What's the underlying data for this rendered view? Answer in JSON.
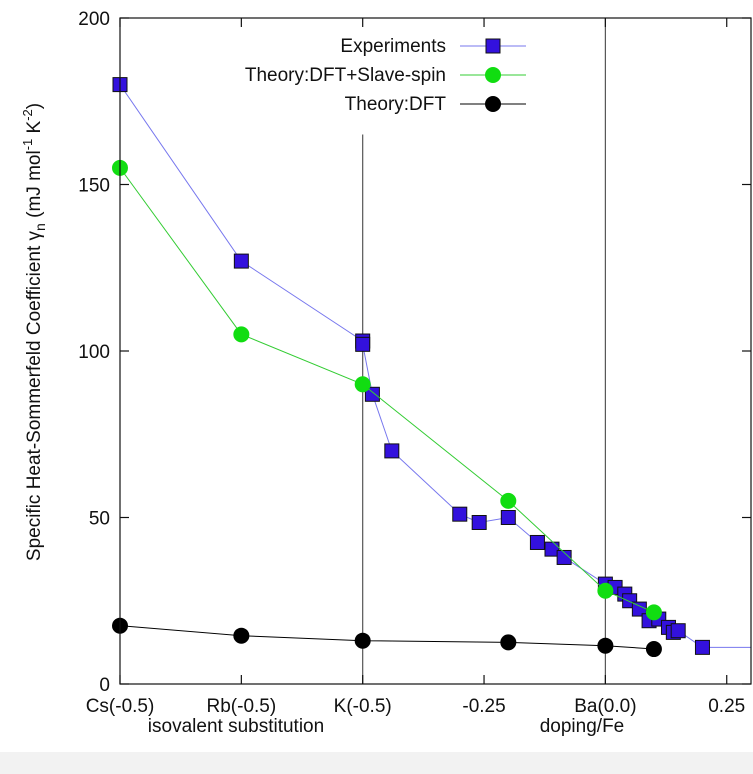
{
  "chart_data": {
    "type": "line",
    "ylabel": "Specific Heat-Sommerfeld Coefficient  γ",
    "ylabel_sub": "n",
    "ylabel_units": "(mJ mol",
    "ylabel_units_sup1": "-1",
    "ylabel_units_mid": " K",
    "ylabel_units_sup2": "-2",
    "ylabel_units_end": ")",
    "xlabel_left": "isovalent substitution",
    "xlabel_right": "doping/Fe",
    "xlim": [
      -1.0,
      0.3
    ],
    "ylim": [
      0,
      200
    ],
    "xticks": [
      {
        "x": -1.0,
        "label": "Cs(-0.5)"
      },
      {
        "x": -0.75,
        "label": "Rb(-0.5)"
      },
      {
        "x": -0.5,
        "label": "K(-0.5)"
      },
      {
        "x": -0.25,
        "label": "-0.25"
      },
      {
        "x": 0.0,
        "label": "Ba(0.0)"
      },
      {
        "x": 0.25,
        "label": "0.25"
      }
    ],
    "yticks": [
      {
        "y": 0,
        "label": "0"
      },
      {
        "y": 50,
        "label": "50"
      },
      {
        "y": 100,
        "label": "100"
      },
      {
        "y": 150,
        "label": "150"
      },
      {
        "y": 200,
        "label": "200"
      }
    ],
    "vlines": [
      -0.5,
      0.0
    ],
    "legend_position": "top-right",
    "series": [
      {
        "name": "Experiments",
        "marker": "square",
        "color": "#3311dd",
        "line_color": "#7777ee",
        "points": [
          [
            -1.0,
            180
          ],
          [
            -0.75,
            127
          ],
          [
            -0.5,
            103
          ],
          [
            -0.5,
            102
          ],
          [
            -0.48,
            87
          ],
          [
            -0.44,
            70
          ],
          [
            -0.3,
            51
          ],
          [
            -0.26,
            48.5
          ],
          [
            -0.2,
            50
          ],
          [
            -0.14,
            42.5
          ],
          [
            -0.11,
            40.5
          ],
          [
            -0.085,
            38
          ],
          [
            0.0,
            30
          ],
          [
            0.02,
            29
          ],
          [
            0.04,
            27
          ],
          [
            0.05,
            25
          ],
          [
            0.07,
            22.5
          ],
          [
            0.09,
            19
          ],
          [
            0.11,
            19.5
          ],
          [
            0.13,
            17
          ],
          [
            0.14,
            15.5
          ],
          [
            0.15,
            16
          ],
          [
            0.2,
            11
          ],
          [
            0.3,
            11
          ]
        ]
      },
      {
        "name": "Theory:DFT+Slave-spin",
        "marker": "circle",
        "color": "#11dd11",
        "line_color": "#33cc33",
        "points": [
          [
            -1.0,
            155
          ],
          [
            -0.75,
            105
          ],
          [
            -0.5,
            90
          ],
          [
            -0.2,
            55
          ],
          [
            0.0,
            28
          ],
          [
            0.1,
            21.5
          ]
        ]
      },
      {
        "name": "Theory:DFT",
        "marker": "circle",
        "color": "#000000",
        "line_color": "#000000",
        "points": [
          [
            -1.0,
            17.5
          ],
          [
            -0.75,
            14.5
          ],
          [
            -0.5,
            13
          ],
          [
            -0.2,
            12.5
          ],
          [
            0.0,
            11.5
          ],
          [
            0.1,
            10.5
          ]
        ]
      }
    ]
  }
}
